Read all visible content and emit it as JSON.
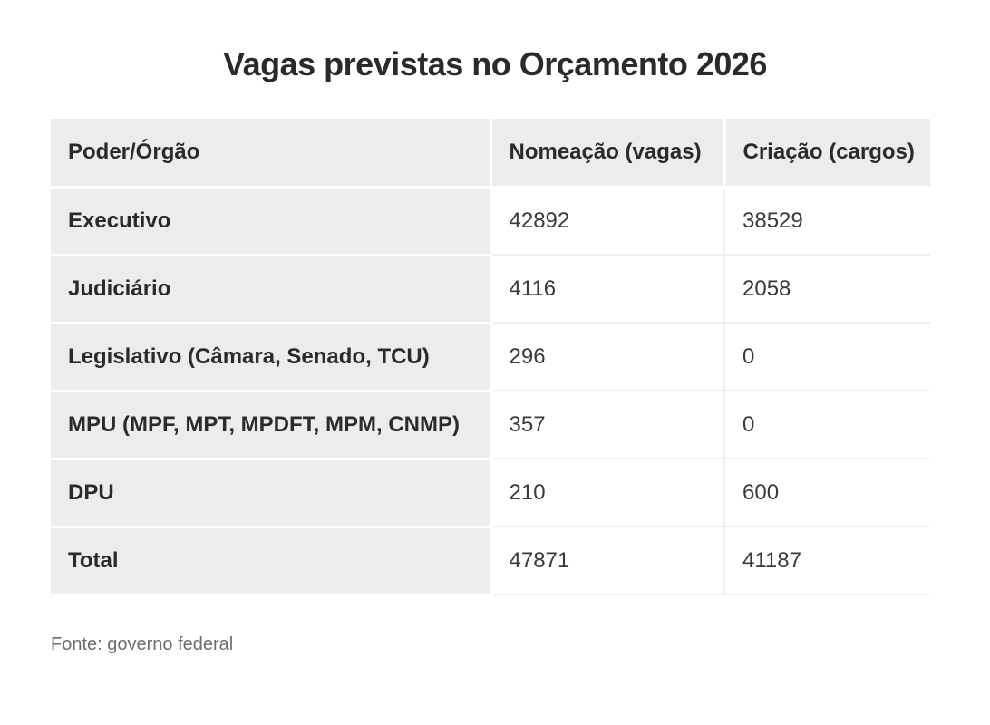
{
  "title": "Vagas previstas no Orçamento 2026",
  "source": "Fonte: governo federal",
  "chart_data": {
    "type": "table",
    "title": "Vagas previstas no Orçamento 2026",
    "columns": [
      "Poder/Órgão",
      "Nomeação (vagas)",
      "Criação (cargos)"
    ],
    "rows": [
      [
        "Executivo",
        "42892",
        "38529"
      ],
      [
        "Judiciário",
        "4116",
        "2058"
      ],
      [
        "Legislativo (Câmara, Senado, TCU)",
        "296",
        "0"
      ],
      [
        "MPU (MPF, MPT, MPDFT, MPM, CNMP)",
        "357",
        "0"
      ],
      [
        "DPU",
        "210",
        "600"
      ],
      [
        "Total",
        "47871",
        "41187"
      ]
    ],
    "source": "Fonte: governo federal"
  }
}
